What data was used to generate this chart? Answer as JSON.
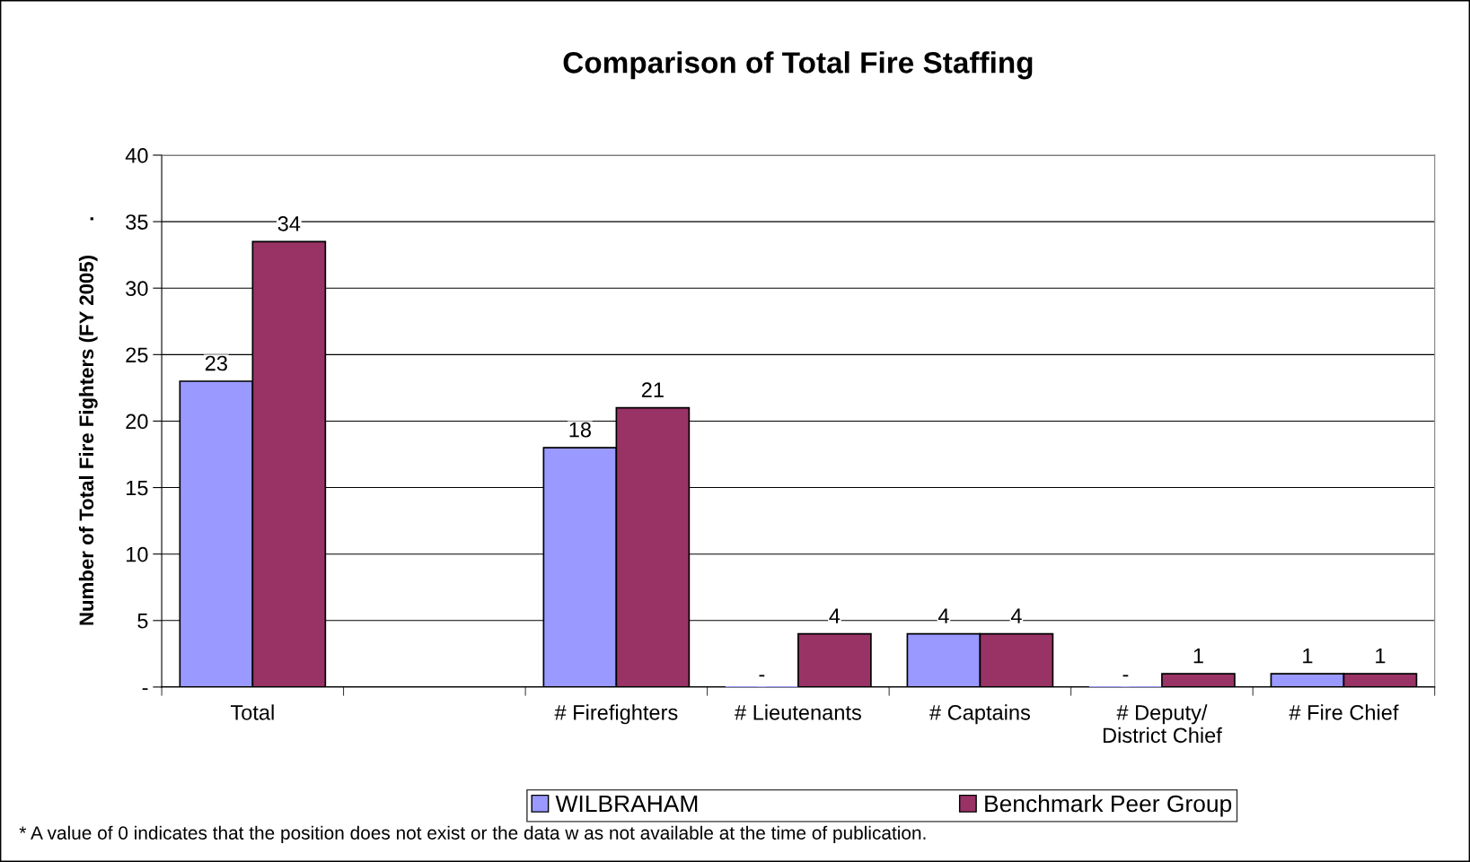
{
  "chart_data": {
    "type": "bar",
    "title": "Comparison of Total Fire Staffing",
    "ylabel": "Number of Total Fire Fighters (FY 2005)      .",
    "categories": [
      "Total",
      null,
      "# Firefighters",
      "# Lieutenants",
      "# Captains",
      "# Deputy/\nDistrict Chief",
      "# Fire Chief"
    ],
    "series": [
      {
        "name": "WILBRAHAM",
        "color": "#9999ff",
        "values": [
          23,
          null,
          18,
          0,
          4,
          0,
          1
        ],
        "value_labels": [
          "23",
          null,
          "18",
          "-",
          "4",
          "-",
          "1"
        ]
      },
      {
        "name": "Benchmark Peer Group",
        "color": "#993366",
        "values": [
          33.5,
          null,
          21,
          4,
          4,
          1,
          1
        ],
        "value_labels": [
          "34",
          null,
          "21",
          "4",
          "4",
          "1",
          "1"
        ]
      }
    ],
    "ylim": [
      0,
      40
    ],
    "yticks": [
      {
        "value": 0,
        "label": "-"
      },
      5,
      10,
      15,
      20,
      25,
      30,
      35,
      40
    ],
    "grid": "y",
    "legend": "bottom",
    "annotations": [
      "* A value of 0 indicates that the position does not exist or the data w as not available at the time of publication."
    ]
  }
}
